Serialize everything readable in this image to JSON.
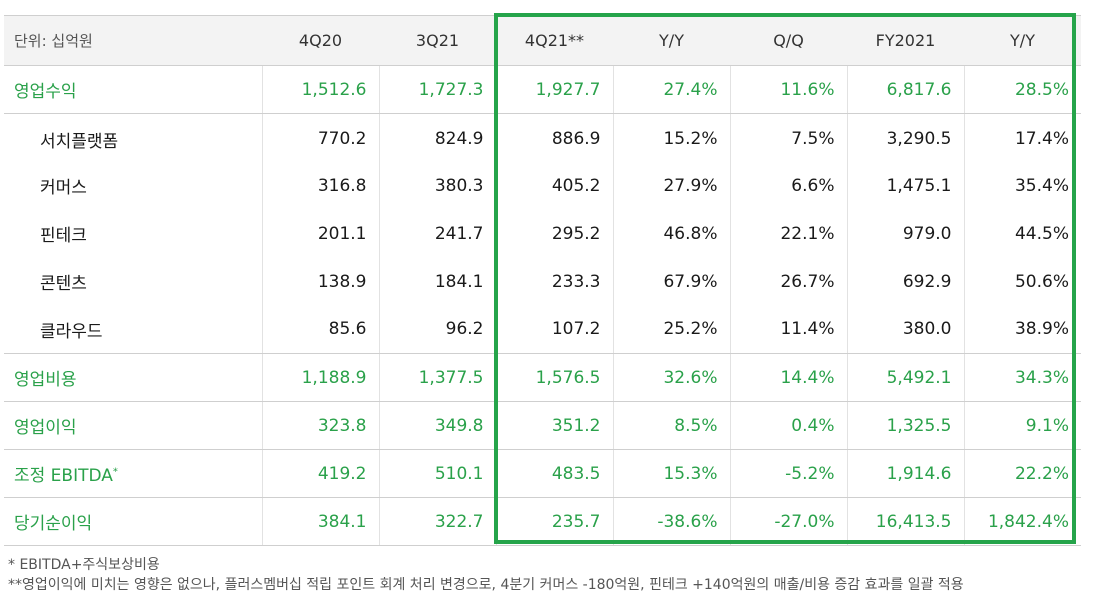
{
  "header": {
    "unit_label": "단위: 십억원",
    "columns": [
      "4Q20",
      "3Q21",
      "4Q21**",
      "Y/Y",
      "Q/Q",
      "FY2021",
      "Y/Y"
    ]
  },
  "rows": [
    {
      "type": "main",
      "label": "영업수익",
      "sup": "",
      "values": [
        "1,512.6",
        "1,727.3",
        "1,927.7",
        "27.4%",
        "11.6%",
        "6,817.6",
        "28.5%"
      ]
    },
    {
      "type": "sub",
      "label": "서치플랫폼",
      "sup": "",
      "values": [
        "770.2",
        "824.9",
        "886.9",
        "15.2%",
        "7.5%",
        "3,290.5",
        "17.4%"
      ]
    },
    {
      "type": "sub",
      "label": "커머스",
      "sup": "",
      "values": [
        "316.8",
        "380.3",
        "405.2",
        "27.9%",
        "6.6%",
        "1,475.1",
        "35.4%"
      ]
    },
    {
      "type": "sub",
      "label": "핀테크",
      "sup": "",
      "values": [
        "201.1",
        "241.7",
        "295.2",
        "46.8%",
        "22.1%",
        "979.0",
        "44.5%"
      ]
    },
    {
      "type": "sub",
      "label": "콘텐츠",
      "sup": "",
      "values": [
        "138.9",
        "184.1",
        "233.3",
        "67.9%",
        "26.7%",
        "692.9",
        "50.6%"
      ]
    },
    {
      "type": "sub",
      "label": "클라우드",
      "sup": "",
      "values": [
        "85.6",
        "96.2",
        "107.2",
        "25.2%",
        "11.4%",
        "380.0",
        "38.9%"
      ]
    },
    {
      "type": "main",
      "label": "영업비용",
      "sup": "",
      "values": [
        "1,188.9",
        "1,377.5",
        "1,576.5",
        "32.6%",
        "14.4%",
        "5,492.1",
        "34.3%"
      ]
    },
    {
      "type": "main",
      "label": "영업이익",
      "sup": "",
      "values": [
        "323.8",
        "349.8",
        "351.2",
        "8.5%",
        "0.4%",
        "1,325.5",
        "9.1%"
      ]
    },
    {
      "type": "main",
      "label": "조정 EBITDA",
      "sup": "*",
      "values": [
        "419.2",
        "510.1",
        "483.5",
        "15.3%",
        "-5.2%",
        "1,914.6",
        "22.2%"
      ]
    },
    {
      "type": "main",
      "label": "당기순이익",
      "sup": "",
      "values": [
        "384.1",
        "322.7",
        "235.7",
        "-38.6%",
        "-27.0%",
        "16,413.5",
        "1,842.4%"
      ]
    }
  ],
  "footnotes": [
    "* EBITDA+주식보상비용",
    "**영업이익에 미치는 영향은 없으나, 플러스멤버십 적립 포인트 회계 처리 변경으로, 4분기 커머스 -180억원, 핀테크 +140억원의 매출/비용 증감 효과를 일괄 적용"
  ],
  "colors": {
    "accent": "#25a44a",
    "text_green": "#2aa14a",
    "header_bg": "#f3f3f3"
  }
}
